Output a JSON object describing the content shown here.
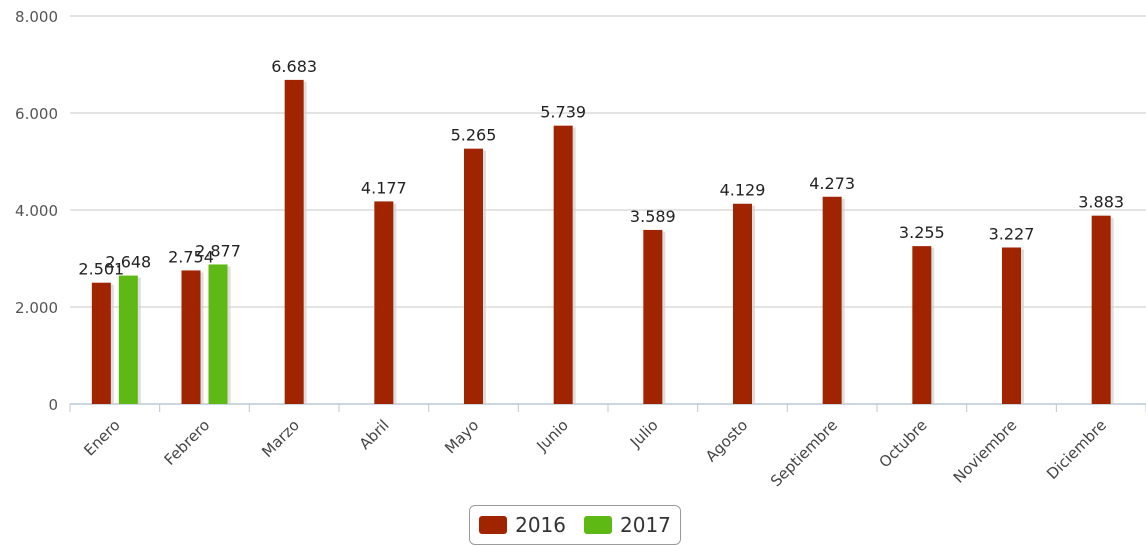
{
  "chart_data": {
    "type": "bar",
    "categories": [
      "Enero",
      "Febrero",
      "Marzo",
      "Abril",
      "Mayo",
      "Junio",
      "Julio",
      "Agosto",
      "Septiembre",
      "Octubre",
      "Noviembre",
      "Diciembre"
    ],
    "series": [
      {
        "name": "2016",
        "color": "#a12400",
        "values": [
          2501,
          2754,
          6683,
          4177,
          5265,
          5739,
          3589,
          4129,
          4273,
          3255,
          3227,
          3883
        ],
        "labels": [
          "2.501",
          "2.754",
          "6.683",
          "4.177",
          "5.265",
          "5.739",
          "3.589",
          "4.129",
          "4.273",
          "3.255",
          "3.227",
          "3.883"
        ]
      },
      {
        "name": "2017",
        "color": "#5eb914",
        "values": [
          2648,
          2877,
          null,
          null,
          null,
          null,
          null,
          null,
          null,
          null,
          null,
          null
        ],
        "labels": [
          "2.648",
          "2.877",
          null,
          null,
          null,
          null,
          null,
          null,
          null,
          null,
          null,
          null
        ]
      }
    ],
    "ylim": [
      0,
      8000
    ],
    "yticks": [
      0,
      2000,
      4000,
      6000,
      8000
    ],
    "ytick_labels": [
      "0",
      "2.000",
      "4.000",
      "6.000",
      "8.000"
    ],
    "grid": true,
    "legend_position": "bottom-center"
  }
}
